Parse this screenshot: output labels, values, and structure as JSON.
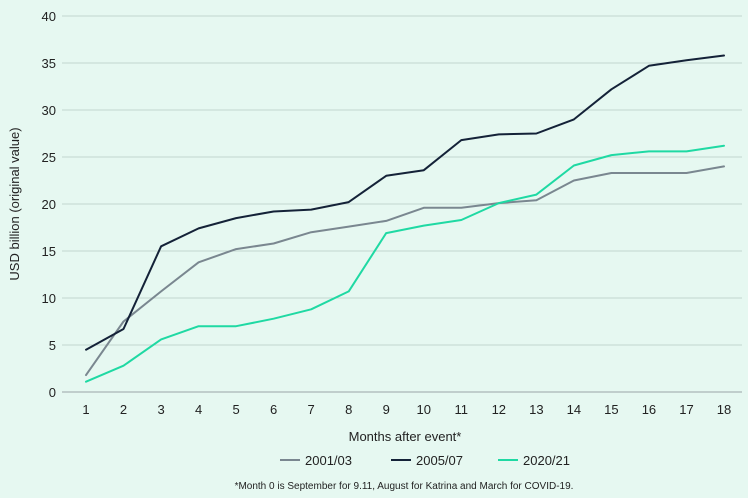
{
  "chart_data": {
    "type": "line",
    "title": "",
    "xlabel": "Months after event*",
    "ylabel": "USD billion (original value)",
    "ylim": [
      0,
      40
    ],
    "yticks": [
      0,
      5,
      10,
      15,
      20,
      25,
      30,
      35,
      40
    ],
    "grid": "horizontal",
    "legend_position": "bottom",
    "x": [
      1,
      2,
      3,
      4,
      5,
      6,
      7,
      8,
      9,
      10,
      11,
      12,
      13,
      14,
      15,
      16,
      17,
      18
    ],
    "series": [
      {
        "name": "2001/03",
        "color": "#7a8790",
        "values": [
          1.8,
          7.5,
          10.7,
          13.8,
          15.2,
          15.8,
          17.0,
          17.6,
          18.2,
          19.6,
          19.6,
          20.1,
          20.4,
          22.5,
          23.3,
          23.3,
          23.3,
          24.0
        ]
      },
      {
        "name": "2005/07",
        "color": "#142238",
        "values": [
          4.5,
          6.7,
          15.5,
          17.4,
          18.5,
          19.2,
          19.4,
          20.2,
          23.0,
          23.6,
          26.8,
          27.4,
          27.5,
          29.0,
          32.2,
          34.7,
          35.3,
          35.8
        ]
      },
      {
        "name": "2020/21",
        "color": "#1fd9a3",
        "values": [
          1.1,
          2.8,
          5.6,
          7.0,
          7.0,
          7.8,
          8.8,
          10.7,
          16.9,
          17.7,
          18.3,
          20.1,
          21.0,
          24.1,
          25.2,
          25.6,
          25.6,
          26.2
        ]
      }
    ],
    "footnote": "*Month 0 is September for 9.11, August for Katrina and March for COVID-19."
  }
}
